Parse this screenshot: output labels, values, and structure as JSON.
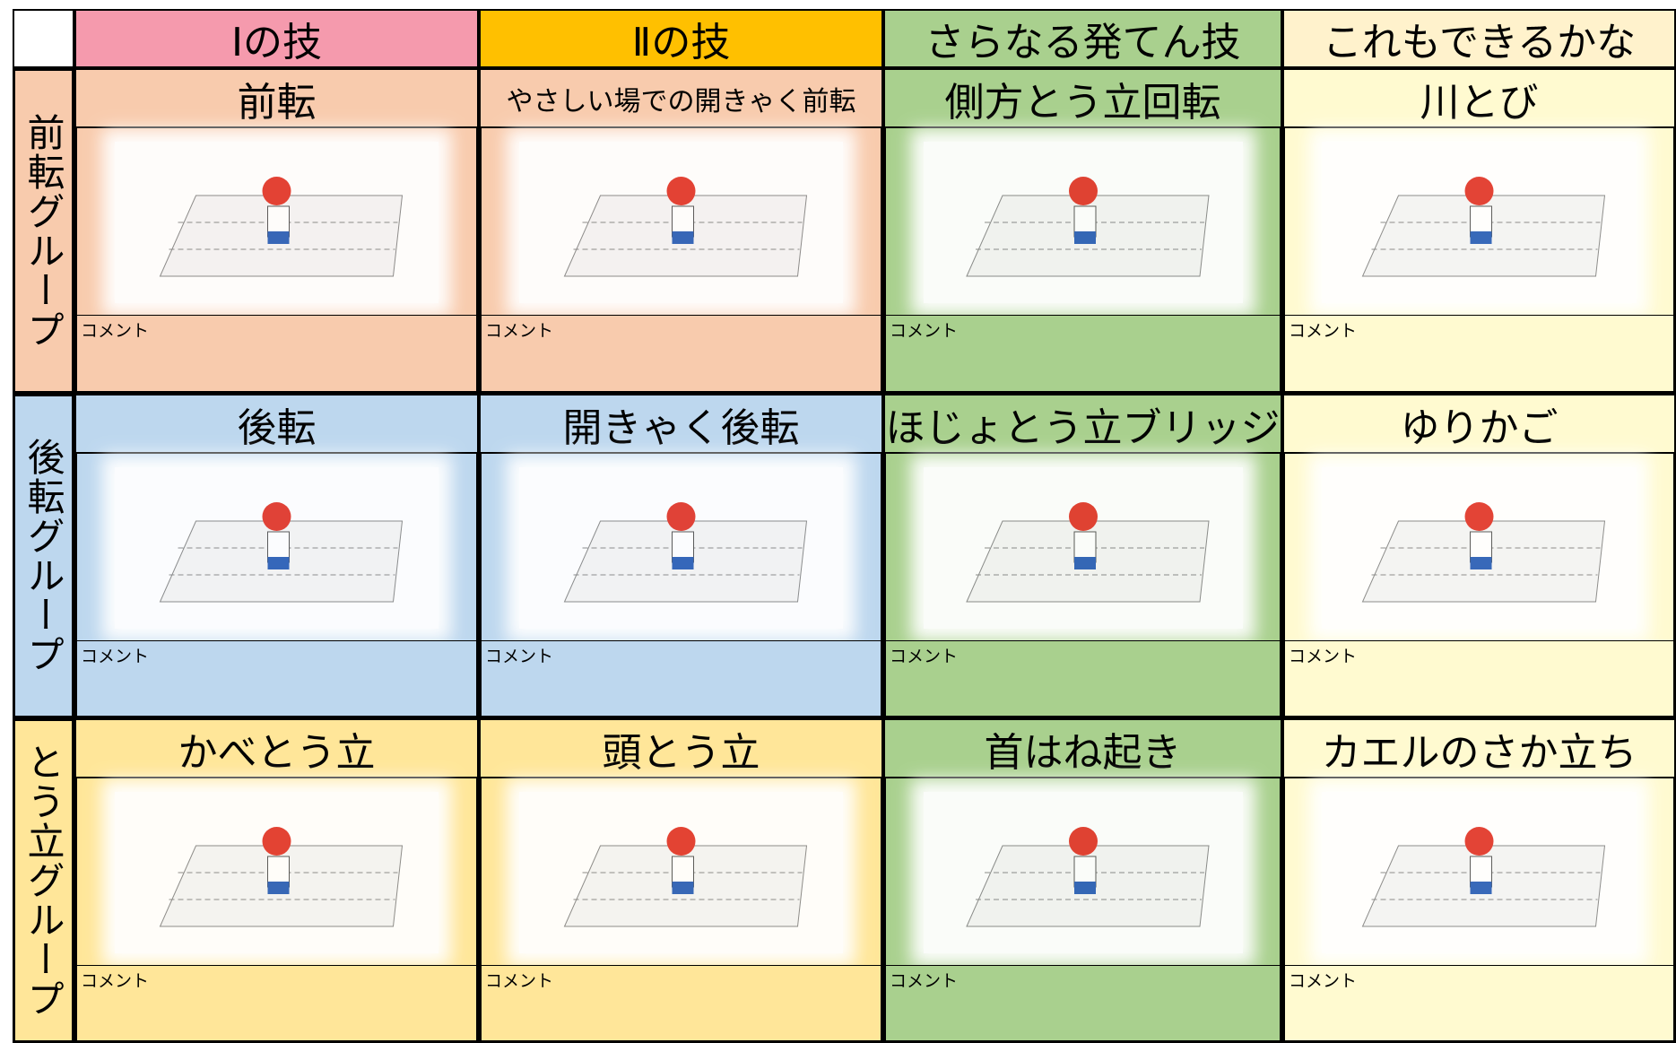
{
  "header": {
    "columns": [
      "Ⅰの技",
      "Ⅱの技",
      "さらなる発てん技",
      "これもできるかな"
    ]
  },
  "groups": [
    {
      "label": "前転グループ",
      "cells": [
        {
          "title": "前転",
          "comment": "コメント"
        },
        {
          "title": "やさしい場での開きゃく前転",
          "comment": "コメント"
        },
        {
          "title": "側方とう立回転",
          "comment": "コメント"
        },
        {
          "title": "川とび",
          "comment": "コメント"
        }
      ]
    },
    {
      "label": "後転グループ",
      "cells": [
        {
          "title": "後転",
          "comment": "コメント"
        },
        {
          "title": "開きゃく後転",
          "comment": "コメント"
        },
        {
          "title": "ほじょとう立ブリッジ",
          "comment": "コメント"
        },
        {
          "title": "ゆりかご",
          "comment": "コメント"
        }
      ]
    },
    {
      "label": "とう立グループ",
      "cells": [
        {
          "title": "かべとう立",
          "comment": "コメント"
        },
        {
          "title": "頭とう立",
          "comment": "コメント"
        },
        {
          "title": "首はね起き",
          "comment": "コメント"
        },
        {
          "title": "カエルのさか立ち",
          "comment": "コメント"
        }
      ]
    }
  ]
}
